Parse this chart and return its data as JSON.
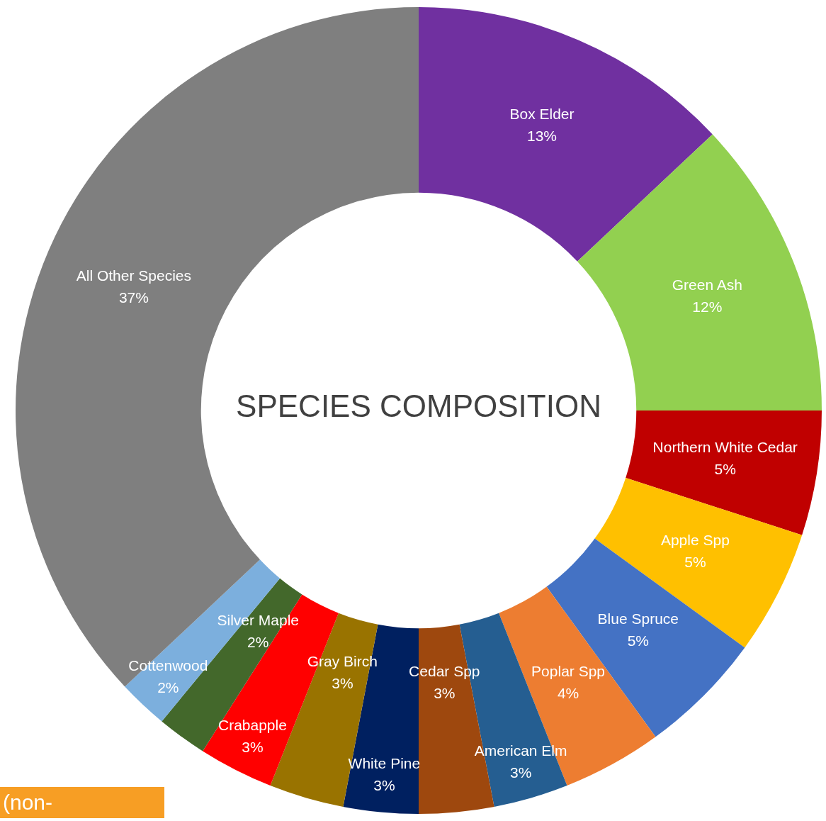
{
  "chart_data": {
    "type": "donut",
    "title": "SPECIES COMPOSITION",
    "categories": [
      "Box Elder",
      "Green Ash",
      "Northern White Cedar",
      "Apple Spp",
      "Blue Spruce",
      "Poplar Spp",
      "American Elm",
      "Cedar Spp",
      "White Pine",
      "Gray Birch",
      "Crabapple",
      "Silver Maple",
      "Cottenwood",
      "All Other Species"
    ],
    "values": [
      13,
      12,
      5,
      5,
      5,
      4,
      3,
      3,
      3,
      3,
      3,
      2,
      2,
      37
    ],
    "colors": [
      "#7030a0",
      "#92d050",
      "#c00000",
      "#ffc000",
      "#4472c4",
      "#ed7d31",
      "#255e91",
      "#9e480e",
      "#002060",
      "#997300",
      "#ff0000",
      "#43682b",
      "#7cafdd",
      "#7f7f7f"
    ],
    "value_labels": [
      "13%",
      "12%",
      "5%",
      "5%",
      "5%",
      "4%",
      "3%",
      "3%",
      "3%",
      "3%",
      "3%",
      "2%",
      "2%",
      "37%"
    ],
    "legend": false,
    "annotations": [
      "(non-"
    ]
  }
}
